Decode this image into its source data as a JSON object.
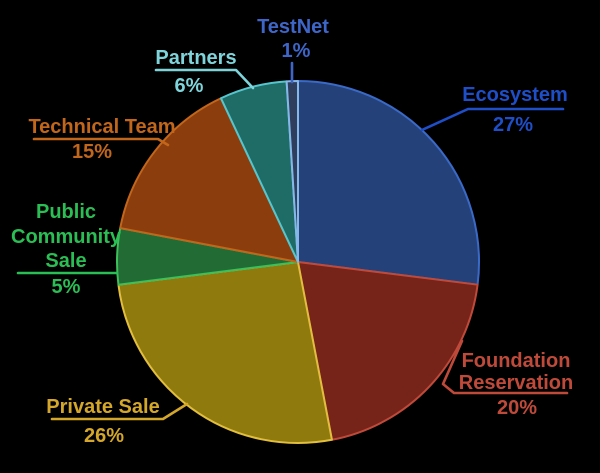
{
  "background": "#000000",
  "chart_data": {
    "type": "pie",
    "title": "",
    "legend_position": "callout-labels",
    "start_angle_deg": 90,
    "direction": "clockwise",
    "categories": [
      "Ecosystem",
      "Foundation Reservation",
      "Private Sale",
      "Public Community Sale",
      "Technical Team",
      "Partners",
      "TestNet"
    ],
    "values": [
      27,
      20,
      26,
      5,
      15,
      6,
      1
    ],
    "slices": [
      {
        "label": "Ecosystem",
        "label_lines": [
          "Ecosystem"
        ],
        "pct_label": "27%",
        "value": 27,
        "fill": "#254179",
        "stroke": "#3A6AC8",
        "label_color": "#1E4EC8"
      },
      {
        "label": "Foundation Reservation",
        "label_lines": [
          "Foundation",
          "Reservation"
        ],
        "pct_label": "20%",
        "value": 20,
        "fill": "#76231A",
        "stroke": "#C04A3A",
        "label_color": "#C04A3A"
      },
      {
        "label": "Private Sale",
        "label_lines": [
          "Private Sale"
        ],
        "pct_label": "26%",
        "value": 26,
        "fill": "#8F7A0E",
        "stroke": "#E2BE3F",
        "label_color": "#D4A72B"
      },
      {
        "label": "Public Community Sale",
        "label_lines": [
          "Public",
          "Community",
          "Sale"
        ],
        "pct_label": "5%",
        "value": 5,
        "fill": "#226B35",
        "stroke": "#3DBF5A",
        "label_color": "#2BBE54"
      },
      {
        "label": "Technical Team",
        "label_lines": [
          "Technical Team"
        ],
        "pct_label": "15%",
        "value": 15,
        "fill": "#8C3D0E",
        "stroke": "#C2661B",
        "label_color": "#C2661B"
      },
      {
        "label": "Partners",
        "label_lines": [
          "Partners"
        ],
        "pct_label": "6%",
        "value": 6,
        "fill": "#1F6B66",
        "stroke": "#55C6CE",
        "label_color": "#7ED4DA"
      },
      {
        "label": "TestNet",
        "label_lines": [
          "TestNet"
        ],
        "pct_label": "1%",
        "value": 1,
        "fill": "#2E3E5C",
        "stroke": "#85B8E8",
        "label_color": "#3E66C9"
      }
    ]
  }
}
